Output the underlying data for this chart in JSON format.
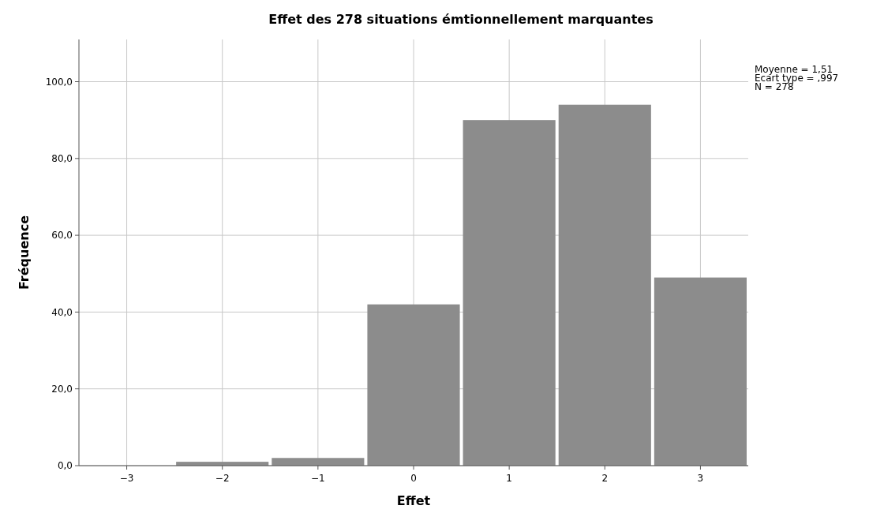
{
  "chart_data": {
    "type": "histogram",
    "title": "Effet des 278 situations émtionnellement marquantes",
    "xlabel": "Effet",
    "ylabel": "Fréquence",
    "bins": [
      -3.5,
      -2.5,
      -1.5,
      -0.5,
      0.5,
      1.5,
      2.5,
      3.5
    ],
    "values": [
      0,
      1,
      2,
      42,
      90,
      94,
      49
    ],
    "color": "#8c8c8c",
    "xlim": [
      -3.5,
      3.5
    ],
    "xticks": [
      {
        "value": -3,
        "label": "−3"
      },
      {
        "value": -2,
        "label": "−2"
      },
      {
        "value": -1,
        "label": "−1"
      },
      0,
      1,
      2,
      3
    ],
    "ylim": [
      0,
      111
    ],
    "yticks": [
      {
        "value": 0,
        "label": "0,0"
      },
      {
        "value": 20,
        "label": "20,0"
      },
      {
        "value": 40,
        "label": "40,0"
      },
      {
        "value": 60,
        "label": "60,0"
      },
      {
        "value": 80,
        "label": "80,0"
      },
      {
        "value": 100,
        "label": "100,0"
      }
    ],
    "grid": true,
    "annotations": [
      "Moyenne = 1,51",
      "Ecart type = ,997",
      "N = 278"
    ]
  }
}
